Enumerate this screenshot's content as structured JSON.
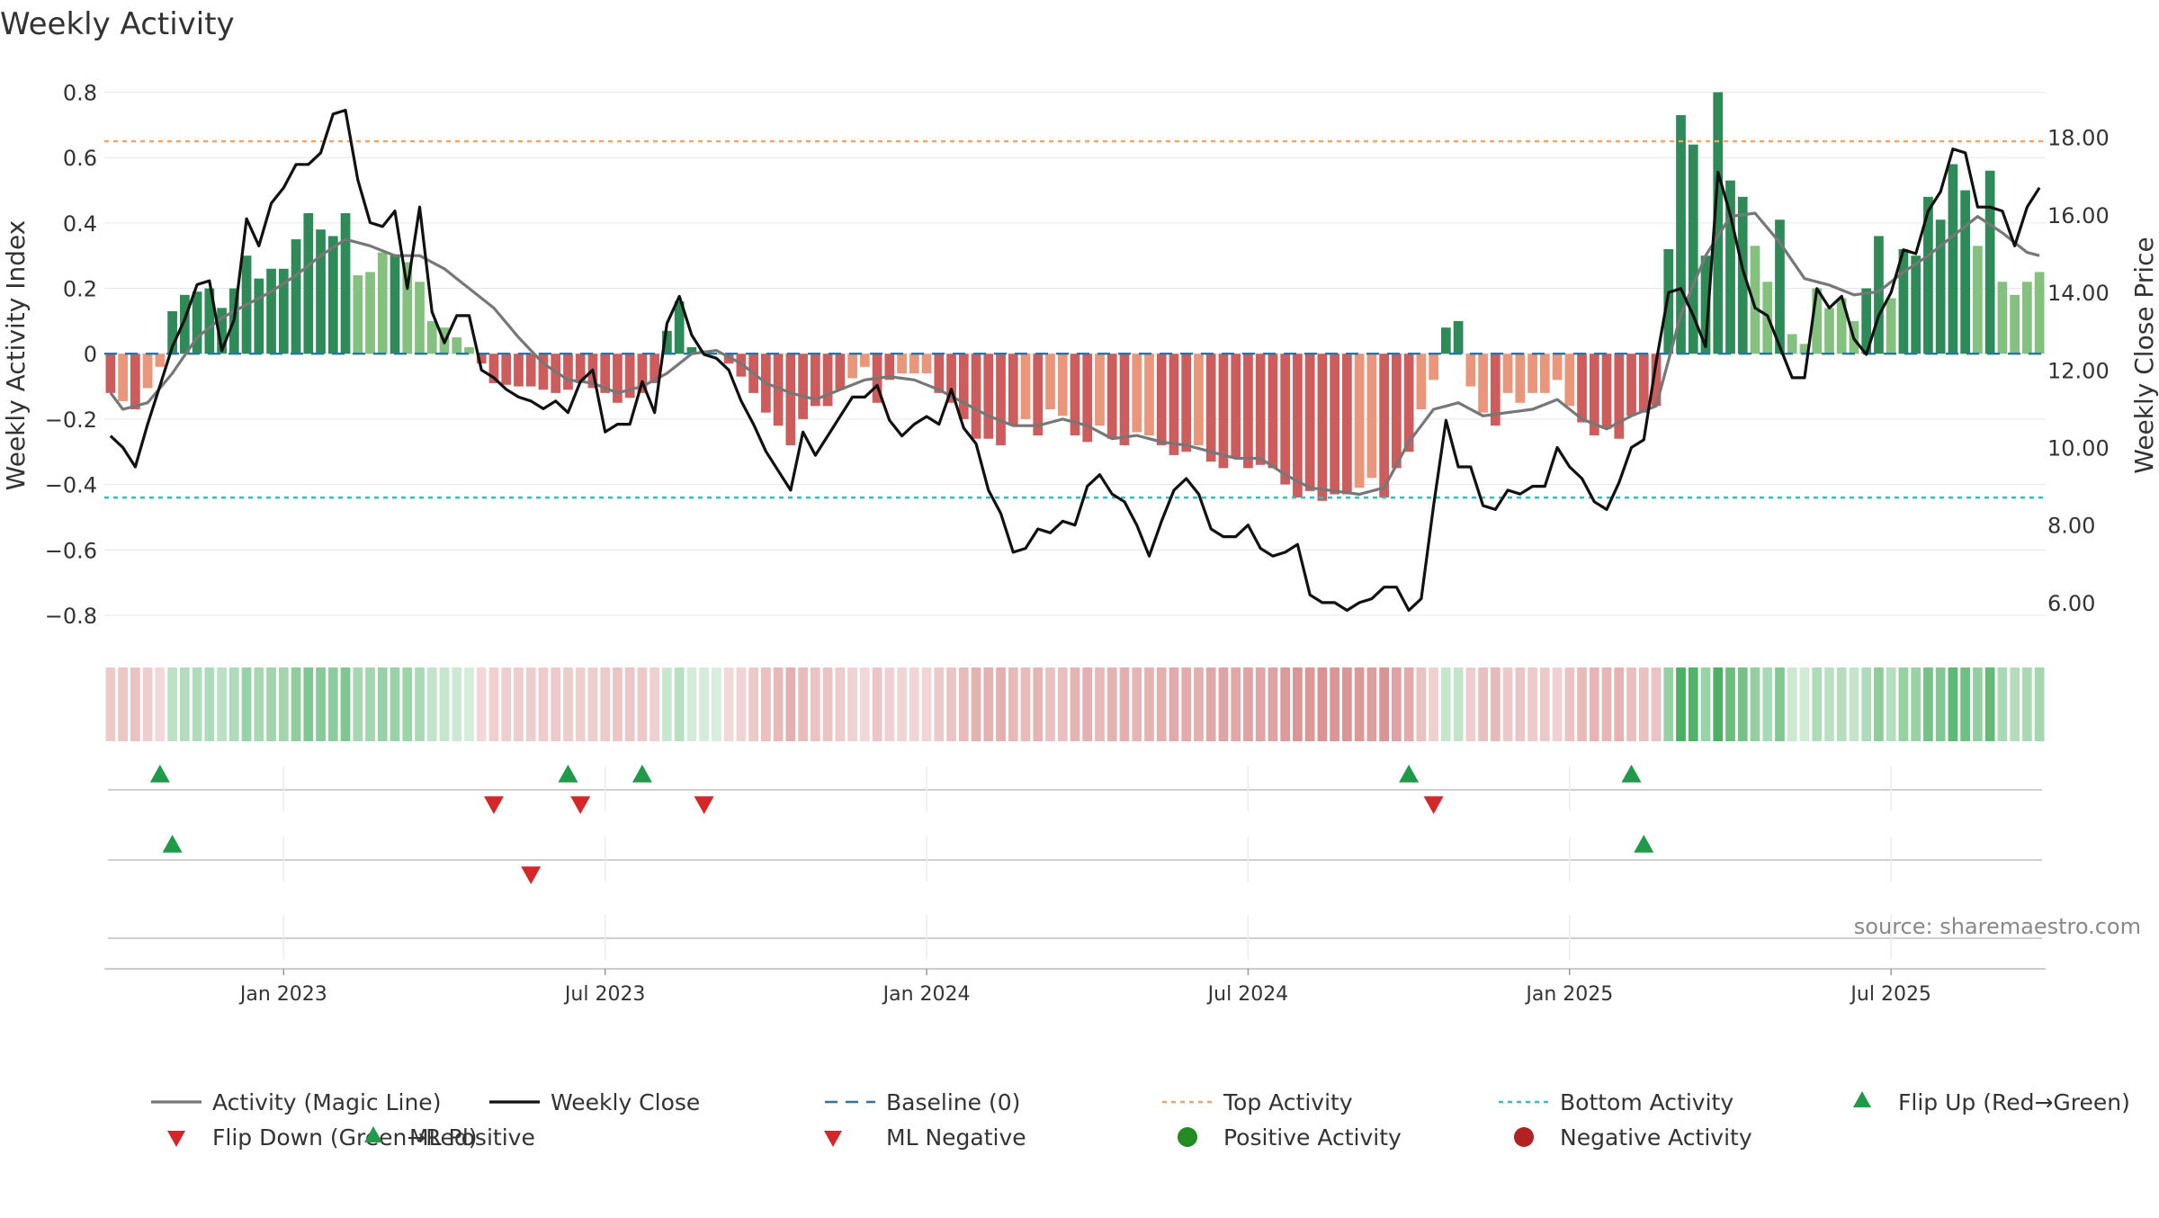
{
  "chart_data": {
    "type": "bar",
    "title": "Weekly Activity",
    "ylabel": "Weekly Activity Index",
    "y2label": "Weekly Close Price",
    "source": "source: sharemaestro.com",
    "ylim": [
      -0.88,
      0.84
    ],
    "y2lim": [
      5.0,
      19.5
    ],
    "y_ticks": [
      0.8,
      0.6,
      0.4,
      0.2,
      0,
      -0.2,
      -0.4,
      -0.6,
      -0.8
    ],
    "y_tick_labels": [
      "0.8",
      "0.6",
      "0.4",
      "0.2",
      "0",
      "−0.2",
      "−0.4",
      "−0.6",
      "−0.8"
    ],
    "y2_ticks": [
      18,
      16,
      14,
      12,
      10,
      8,
      6
    ],
    "y2_tick_labels": [
      "18.00",
      "16.00",
      "14.00",
      "12.00",
      "10.00",
      "8.00",
      "6.00"
    ],
    "x_ticks": [
      {
        "label": "Jan 2023",
        "week": 14
      },
      {
        "label": "Jul 2023",
        "week": 40
      },
      {
        "label": "Jan 2024",
        "week": 66
      },
      {
        "label": "Jul 2024",
        "week": 92
      },
      {
        "label": "Jan 2025",
        "week": 118
      },
      {
        "label": "Jul 2025",
        "week": 144
      }
    ],
    "top_activity": 0.65,
    "bottom_activity": -0.44,
    "weeks": 157,
    "activity_anchors": [
      [
        0,
        -0.12
      ],
      [
        2,
        -0.17
      ],
      [
        4,
        -0.04
      ],
      [
        5,
        0.13
      ],
      [
        6,
        0.18
      ],
      [
        8,
        0.2
      ],
      [
        9,
        0.14
      ],
      [
        10,
        0.2
      ],
      [
        11,
        0.3
      ],
      [
        12,
        0.23
      ],
      [
        13,
        0.26
      ],
      [
        14,
        0.26
      ],
      [
        15,
        0.35
      ],
      [
        16,
        0.43
      ],
      [
        17,
        0.38
      ],
      [
        18,
        0.36
      ],
      [
        19,
        0.43
      ],
      [
        20,
        0.24
      ],
      [
        21,
        0.25
      ],
      [
        22,
        0.31
      ],
      [
        23,
        0.3
      ],
      [
        24,
        0.28
      ],
      [
        25,
        0.22
      ],
      [
        26,
        0.1
      ],
      [
        27,
        0.08
      ],
      [
        28,
        0.05
      ],
      [
        29,
        0.02
      ],
      [
        30,
        -0.03
      ],
      [
        31,
        -0.09
      ],
      [
        33,
        -0.1
      ],
      [
        34,
        -0.1
      ],
      [
        36,
        -0.12
      ],
      [
        37,
        -0.11
      ],
      [
        38,
        -0.09
      ],
      [
        40,
        -0.12
      ],
      [
        41,
        -0.15
      ],
      [
        43,
        -0.12
      ],
      [
        44,
        -0.09
      ],
      [
        45,
        0.07
      ],
      [
        46,
        0.16
      ],
      [
        47,
        0.02
      ],
      [
        49,
        0.0
      ],
      [
        50,
        -0.03
      ],
      [
        51,
        -0.07
      ],
      [
        52,
        -0.12
      ],
      [
        53,
        -0.18
      ],
      [
        54,
        -0.22
      ],
      [
        55,
        -0.28
      ],
      [
        56,
        -0.2
      ],
      [
        57,
        -0.16
      ],
      [
        58,
        -0.16
      ],
      [
        59,
        -0.11
      ],
      [
        61,
        -0.04
      ],
      [
        62,
        -0.15
      ],
      [
        63,
        -0.08
      ],
      [
        64,
        -0.06
      ],
      [
        66,
        -0.06
      ],
      [
        67,
        -0.12
      ],
      [
        68,
        -0.15
      ],
      [
        69,
        -0.2
      ],
      [
        70,
        -0.26
      ],
      [
        71,
        -0.26
      ],
      [
        72,
        -0.28
      ],
      [
        73,
        -0.22
      ],
      [
        74,
        -0.2
      ],
      [
        75,
        -0.25
      ],
      [
        76,
        -0.17
      ],
      [
        77,
        -0.19
      ],
      [
        78,
        -0.25
      ],
      [
        79,
        -0.27
      ],
      [
        80,
        -0.22
      ],
      [
        81,
        -0.26
      ],
      [
        82,
        -0.28
      ],
      [
        83,
        -0.24
      ],
      [
        84,
        -0.25
      ],
      [
        85,
        -0.28
      ],
      [
        86,
        -0.31
      ],
      [
        87,
        -0.3
      ],
      [
        88,
        -0.28
      ],
      [
        89,
        -0.33
      ],
      [
        90,
        -0.35
      ],
      [
        91,
        -0.32
      ],
      [
        92,
        -0.35
      ],
      [
        93,
        -0.34
      ],
      [
        94,
        -0.35
      ],
      [
        95,
        -0.4
      ],
      [
        96,
        -0.44
      ],
      [
        97,
        -0.42
      ],
      [
        98,
        -0.45
      ],
      [
        99,
        -0.43
      ],
      [
        100,
        -0.43
      ],
      [
        101,
        -0.41
      ],
      [
        102,
        -0.38
      ],
      [
        103,
        -0.44
      ],
      [
        104,
        -0.35
      ],
      [
        105,
        -0.3
      ],
      [
        106,
        -0.17
      ],
      [
        107,
        -0.08
      ],
      [
        108,
        0.08
      ],
      [
        109,
        0.1
      ],
      [
        110,
        -0.1
      ],
      [
        111,
        -0.18
      ],
      [
        112,
        -0.22
      ],
      [
        113,
        -0.12
      ],
      [
        114,
        -0.15
      ],
      [
        115,
        -0.12
      ],
      [
        116,
        -0.12
      ],
      [
        117,
        -0.08
      ],
      [
        118,
        -0.16
      ],
      [
        119,
        -0.21
      ],
      [
        120,
        -0.25
      ],
      [
        121,
        -0.23
      ],
      [
        122,
        -0.26
      ],
      [
        123,
        -0.19
      ],
      [
        124,
        -0.18
      ],
      [
        125,
        -0.16
      ],
      [
        126,
        0.32
      ],
      [
        127,
        0.73
      ],
      [
        128,
        0.64
      ],
      [
        129,
        0.3
      ],
      [
        130,
        0.8
      ],
      [
        131,
        0.53
      ],
      [
        132,
        0.48
      ],
      [
        133,
        0.33
      ],
      [
        134,
        0.22
      ],
      [
        135,
        0.41
      ],
      [
        136,
        0.06
      ],
      [
        137,
        0.03
      ],
      [
        138,
        0.2
      ],
      [
        139,
        0.14
      ],
      [
        140,
        0.17
      ],
      [
        141,
        0.1
      ],
      [
        142,
        0.2
      ],
      [
        143,
        0.36
      ],
      [
        144,
        0.17
      ],
      [
        145,
        0.32
      ],
      [
        146,
        0.3
      ],
      [
        147,
        0.48
      ],
      [
        148,
        0.41
      ],
      [
        149,
        0.58
      ],
      [
        150,
        0.5
      ],
      [
        151,
        0.33
      ],
      [
        152,
        0.56
      ],
      [
        153,
        0.22
      ],
      [
        154,
        0.18
      ],
      [
        155,
        0.22
      ],
      [
        156,
        0.25
      ]
    ],
    "magic_anchors": [
      [
        0,
        -0.12
      ],
      [
        1,
        -0.17
      ],
      [
        3,
        -0.15
      ],
      [
        5,
        -0.06
      ],
      [
        7,
        0.05
      ],
      [
        9,
        0.11
      ],
      [
        11,
        0.15
      ],
      [
        13,
        0.19
      ],
      [
        15,
        0.24
      ],
      [
        17,
        0.3
      ],
      [
        19,
        0.35
      ],
      [
        21,
        0.33
      ],
      [
        23,
        0.3
      ],
      [
        25,
        0.3
      ],
      [
        27,
        0.26
      ],
      [
        29,
        0.2
      ],
      [
        31,
        0.14
      ],
      [
        33,
        0.05
      ],
      [
        35,
        -0.03
      ],
      [
        37,
        -0.08
      ],
      [
        39,
        -0.09
      ],
      [
        41,
        -0.12
      ],
      [
        43,
        -0.1
      ],
      [
        45,
        -0.06
      ],
      [
        47,
        0.0
      ],
      [
        49,
        0.01
      ],
      [
        51,
        -0.03
      ],
      [
        53,
        -0.09
      ],
      [
        55,
        -0.12
      ],
      [
        57,
        -0.14
      ],
      [
        59,
        -0.11
      ],
      [
        61,
        -0.08
      ],
      [
        63,
        -0.07
      ],
      [
        65,
        -0.08
      ],
      [
        67,
        -0.11
      ],
      [
        69,
        -0.15
      ],
      [
        71,
        -0.19
      ],
      [
        73,
        -0.22
      ],
      [
        75,
        -0.22
      ],
      [
        77,
        -0.2
      ],
      [
        79,
        -0.22
      ],
      [
        81,
        -0.26
      ],
      [
        83,
        -0.25
      ],
      [
        85,
        -0.27
      ],
      [
        87,
        -0.28
      ],
      [
        89,
        -0.3
      ],
      [
        91,
        -0.32
      ],
      [
        93,
        -0.32
      ],
      [
        95,
        -0.37
      ],
      [
        97,
        -0.41
      ],
      [
        99,
        -0.42
      ],
      [
        101,
        -0.43
      ],
      [
        103,
        -0.41
      ],
      [
        105,
        -0.27
      ],
      [
        107,
        -0.17
      ],
      [
        109,
        -0.15
      ],
      [
        111,
        -0.19
      ],
      [
        113,
        -0.18
      ],
      [
        115,
        -0.17
      ],
      [
        117,
        -0.14
      ],
      [
        119,
        -0.2
      ],
      [
        121,
        -0.23
      ],
      [
        123,
        -0.19
      ],
      [
        125,
        -0.16
      ],
      [
        127,
        0.12
      ],
      [
        129,
        0.3
      ],
      [
        131,
        0.42
      ],
      [
        133,
        0.43
      ],
      [
        135,
        0.34
      ],
      [
        137,
        0.23
      ],
      [
        139,
        0.21
      ],
      [
        141,
        0.18
      ],
      [
        143,
        0.19
      ],
      [
        145,
        0.25
      ],
      [
        147,
        0.3
      ],
      [
        149,
        0.36
      ],
      [
        151,
        0.42
      ],
      [
        153,
        0.37
      ],
      [
        155,
        0.31
      ],
      [
        156,
        0.3
      ]
    ],
    "close_anchors": [
      [
        0,
        10.3
      ],
      [
        1,
        10.0
      ],
      [
        2,
        9.5
      ],
      [
        3,
        10.6
      ],
      [
        4,
        11.6
      ],
      [
        5,
        12.6
      ],
      [
        6,
        13.3
      ],
      [
        7,
        14.2
      ],
      [
        8,
        14.3
      ],
      [
        9,
        12.5
      ],
      [
        10,
        13.3
      ],
      [
        11,
        15.9
      ],
      [
        12,
        15.2
      ],
      [
        13,
        16.3
      ],
      [
        14,
        16.7
      ],
      [
        15,
        17.3
      ],
      [
        16,
        17.3
      ],
      [
        17,
        17.6
      ],
      [
        18,
        18.6
      ],
      [
        19,
        18.7
      ],
      [
        20,
        16.9
      ],
      [
        21,
        15.8
      ],
      [
        22,
        15.7
      ],
      [
        23,
        16.1
      ],
      [
        24,
        14.1
      ],
      [
        25,
        16.2
      ],
      [
        26,
        13.5
      ],
      [
        27,
        12.7
      ],
      [
        28,
        13.4
      ],
      [
        29,
        13.4
      ],
      [
        30,
        12.0
      ],
      [
        31,
        11.8
      ],
      [
        32,
        11.5
      ],
      [
        33,
        11.3
      ],
      [
        34,
        11.2
      ],
      [
        35,
        11.0
      ],
      [
        36,
        11.2
      ],
      [
        37,
        10.9
      ],
      [
        38,
        11.7
      ],
      [
        39,
        12.0
      ],
      [
        40,
        10.4
      ],
      [
        41,
        10.6
      ],
      [
        42,
        10.6
      ],
      [
        43,
        11.7
      ],
      [
        44,
        10.9
      ],
      [
        45,
        13.2
      ],
      [
        46,
        13.9
      ],
      [
        47,
        12.9
      ],
      [
        48,
        12.4
      ],
      [
        49,
        12.3
      ],
      [
        50,
        12.0
      ],
      [
        51,
        11.2
      ],
      [
        52,
        10.6
      ],
      [
        53,
        9.9
      ],
      [
        54,
        9.4
      ],
      [
        55,
        8.9
      ],
      [
        56,
        10.4
      ],
      [
        57,
        9.8
      ],
      [
        58,
        10.3
      ],
      [
        59,
        10.8
      ],
      [
        60,
        11.3
      ],
      [
        61,
        11.3
      ],
      [
        62,
        11.6
      ],
      [
        63,
        10.7
      ],
      [
        64,
        10.3
      ],
      [
        65,
        10.6
      ],
      [
        66,
        10.8
      ],
      [
        67,
        10.6
      ],
      [
        68,
        11.5
      ],
      [
        69,
        10.5
      ],
      [
        70,
        10.1
      ],
      [
        71,
        8.9
      ],
      [
        72,
        8.3
      ],
      [
        73,
        7.3
      ],
      [
        74,
        7.4
      ],
      [
        75,
        7.9
      ],
      [
        76,
        7.8
      ],
      [
        77,
        8.1
      ],
      [
        78,
        8.0
      ],
      [
        79,
        9.0
      ],
      [
        80,
        9.3
      ],
      [
        81,
        8.8
      ],
      [
        82,
        8.6
      ],
      [
        83,
        8.0
      ],
      [
        84,
        7.2
      ],
      [
        85,
        8.1
      ],
      [
        86,
        8.9
      ],
      [
        87,
        9.2
      ],
      [
        88,
        8.8
      ],
      [
        89,
        7.9
      ],
      [
        90,
        7.7
      ],
      [
        91,
        7.7
      ],
      [
        92,
        8.0
      ],
      [
        93,
        7.4
      ],
      [
        94,
        7.2
      ],
      [
        95,
        7.3
      ],
      [
        96,
        7.5
      ],
      [
        97,
        6.2
      ],
      [
        98,
        6.0
      ],
      [
        99,
        6.0
      ],
      [
        100,
        5.8
      ],
      [
        101,
        6.0
      ],
      [
        102,
        6.1
      ],
      [
        103,
        6.4
      ],
      [
        104,
        6.4
      ],
      [
        105,
        5.8
      ],
      [
        106,
        6.1
      ],
      [
        107,
        8.5
      ],
      [
        108,
        10.7
      ],
      [
        109,
        9.5
      ],
      [
        110,
        9.5
      ],
      [
        111,
        8.5
      ],
      [
        112,
        8.4
      ],
      [
        113,
        8.9
      ],
      [
        114,
        8.8
      ],
      [
        115,
        9.0
      ],
      [
        116,
        9.0
      ],
      [
        117,
        10.0
      ],
      [
        118,
        9.5
      ],
      [
        119,
        9.2
      ],
      [
        120,
        8.6
      ],
      [
        121,
        8.4
      ],
      [
        122,
        9.1
      ],
      [
        123,
        10.0
      ],
      [
        124,
        10.2
      ],
      [
        125,
        12.2
      ],
      [
        126,
        14.0
      ],
      [
        127,
        14.1
      ],
      [
        128,
        13.4
      ],
      [
        129,
        12.6
      ],
      [
        130,
        17.1
      ],
      [
        131,
        16.0
      ],
      [
        132,
        14.6
      ],
      [
        133,
        13.6
      ],
      [
        134,
        13.4
      ],
      [
        135,
        12.6
      ],
      [
        136,
        11.8
      ],
      [
        137,
        11.8
      ],
      [
        138,
        14.1
      ],
      [
        139,
        13.6
      ],
      [
        140,
        13.9
      ],
      [
        141,
        12.8
      ],
      [
        142,
        12.4
      ],
      [
        143,
        13.4
      ],
      [
        144,
        14.0
      ],
      [
        145,
        15.1
      ],
      [
        146,
        15.0
      ],
      [
        147,
        16.1
      ],
      [
        148,
        16.6
      ],
      [
        149,
        17.7
      ],
      [
        150,
        17.6
      ],
      [
        151,
        16.2
      ],
      [
        152,
        16.2
      ],
      [
        153,
        16.1
      ],
      [
        154,
        15.2
      ],
      [
        155,
        16.2
      ],
      [
        156,
        16.7
      ]
    ],
    "flip_up_row1": [
      4,
      37,
      43,
      105,
      123
    ],
    "flip_down_row1": [
      31,
      38,
      48,
      107
    ],
    "ml_positive_row2": [
      5,
      124
    ],
    "ml_negative_row2": [
      34
    ],
    "legend": [
      "Activity (Magic Line)",
      "Weekly Close",
      "Baseline (0)",
      "Top Activity",
      "Bottom Activity",
      "Flip Up (Red→Green)",
      "Flip Down (Green→Red)",
      "ML Positive",
      "ML Negative",
      "Positive Activity",
      "Negative Activity"
    ],
    "colors": {
      "pos_dark": "#2e8b57",
      "pos_light": "#84c17f",
      "neg_dark": "#cd5c5c",
      "neg_light": "#e9967a",
      "magic": "#777777",
      "close": "#111111",
      "baseline": "#1f77b4",
      "top": "#f4a460",
      "bottom": "#20c5c5",
      "flip_up": "#1e9a48",
      "flip_down": "#d62728",
      "pos_dot": "#228b22",
      "neg_dot": "#b22222"
    }
  }
}
